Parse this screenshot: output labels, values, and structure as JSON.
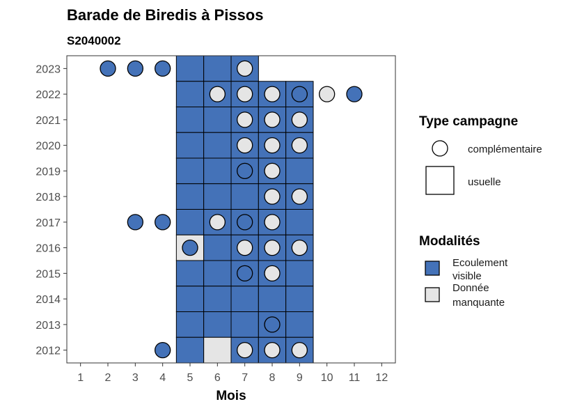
{
  "chart_data": {
    "type": "heatmap",
    "title": "Barade de Biredis à Pissos",
    "subtitle": "S2040002",
    "xlabel": "Mois",
    "ylabel": "",
    "x_ticks": [
      1,
      2,
      3,
      4,
      5,
      6,
      7,
      8,
      9,
      10,
      11,
      12
    ],
    "y_ticks": [
      2012,
      2013,
      2014,
      2015,
      2016,
      2017,
      2018,
      2019,
      2020,
      2021,
      2022,
      2023
    ],
    "colors": {
      "ecoulement_visible": "#4472b8",
      "donnee_manquante": "#e5e5e5"
    },
    "legends": {
      "shape": {
        "title": "Type campagne",
        "items": [
          {
            "label": "complémentaire",
            "shape": "circle"
          },
          {
            "label": "usuelle",
            "shape": "square"
          }
        ]
      },
      "fill": {
        "title": "Modalités",
        "items": [
          {
            "label_line1": "Ecoulement",
            "label_line2": "visible",
            "color": "#4472b8"
          },
          {
            "label_line1": "Donnée",
            "label_line2": "manquante",
            "color": "#e5e5e5"
          }
        ]
      }
    },
    "tiles": [
      {
        "year": 2023,
        "month": 5,
        "value": "Ecoulement visible"
      },
      {
        "year": 2023,
        "month": 6,
        "value": "Ecoulement visible"
      },
      {
        "year": 2023,
        "month": 7,
        "value": "Ecoulement visible"
      },
      {
        "year": 2022,
        "month": 5,
        "value": "Ecoulement visible"
      },
      {
        "year": 2022,
        "month": 6,
        "value": "Ecoulement visible"
      },
      {
        "year": 2022,
        "month": 7,
        "value": "Ecoulement visible"
      },
      {
        "year": 2022,
        "month": 8,
        "value": "Ecoulement visible"
      },
      {
        "year": 2022,
        "month": 9,
        "value": "Ecoulement visible"
      },
      {
        "year": 2021,
        "month": 5,
        "value": "Ecoulement visible"
      },
      {
        "year": 2021,
        "month": 6,
        "value": "Ecoulement visible"
      },
      {
        "year": 2021,
        "month": 7,
        "value": "Ecoulement visible"
      },
      {
        "year": 2021,
        "month": 8,
        "value": "Ecoulement visible"
      },
      {
        "year": 2021,
        "month": 9,
        "value": "Ecoulement visible"
      },
      {
        "year": 2020,
        "month": 5,
        "value": "Ecoulement visible"
      },
      {
        "year": 2020,
        "month": 6,
        "value": "Ecoulement visible"
      },
      {
        "year": 2020,
        "month": 7,
        "value": "Ecoulement visible"
      },
      {
        "year": 2020,
        "month": 8,
        "value": "Ecoulement visible"
      },
      {
        "year": 2020,
        "month": 9,
        "value": "Ecoulement visible"
      },
      {
        "year": 2019,
        "month": 5,
        "value": "Ecoulement visible"
      },
      {
        "year": 2019,
        "month": 6,
        "value": "Ecoulement visible"
      },
      {
        "year": 2019,
        "month": 7,
        "value": "Ecoulement visible"
      },
      {
        "year": 2019,
        "month": 8,
        "value": "Ecoulement visible"
      },
      {
        "year": 2019,
        "month": 9,
        "value": "Ecoulement visible"
      },
      {
        "year": 2018,
        "month": 5,
        "value": "Ecoulement visible"
      },
      {
        "year": 2018,
        "month": 6,
        "value": "Ecoulement visible"
      },
      {
        "year": 2018,
        "month": 7,
        "value": "Ecoulement visible"
      },
      {
        "year": 2018,
        "month": 8,
        "value": "Ecoulement visible"
      },
      {
        "year": 2018,
        "month": 9,
        "value": "Ecoulement visible"
      },
      {
        "year": 2017,
        "month": 5,
        "value": "Ecoulement visible"
      },
      {
        "year": 2017,
        "month": 6,
        "value": "Ecoulement visible"
      },
      {
        "year": 2017,
        "month": 7,
        "value": "Ecoulement visible"
      },
      {
        "year": 2017,
        "month": 8,
        "value": "Ecoulement visible"
      },
      {
        "year": 2017,
        "month": 9,
        "value": "Ecoulement visible"
      },
      {
        "year": 2016,
        "month": 5,
        "value": "Donnée manquante"
      },
      {
        "year": 2016,
        "month": 6,
        "value": "Ecoulement visible"
      },
      {
        "year": 2016,
        "month": 7,
        "value": "Ecoulement visible"
      },
      {
        "year": 2016,
        "month": 8,
        "value": "Ecoulement visible"
      },
      {
        "year": 2016,
        "month": 9,
        "value": "Ecoulement visible"
      },
      {
        "year": 2015,
        "month": 5,
        "value": "Ecoulement visible"
      },
      {
        "year": 2015,
        "month": 6,
        "value": "Ecoulement visible"
      },
      {
        "year": 2015,
        "month": 7,
        "value": "Ecoulement visible"
      },
      {
        "year": 2015,
        "month": 8,
        "value": "Ecoulement visible"
      },
      {
        "year": 2015,
        "month": 9,
        "value": "Ecoulement visible"
      },
      {
        "year": 2014,
        "month": 5,
        "value": "Ecoulement visible"
      },
      {
        "year": 2014,
        "month": 6,
        "value": "Ecoulement visible"
      },
      {
        "year": 2014,
        "month": 7,
        "value": "Ecoulement visible"
      },
      {
        "year": 2014,
        "month": 8,
        "value": "Ecoulement visible"
      },
      {
        "year": 2014,
        "month": 9,
        "value": "Ecoulement visible"
      },
      {
        "year": 2013,
        "month": 5,
        "value": "Ecoulement visible"
      },
      {
        "year": 2013,
        "month": 6,
        "value": "Ecoulement visible"
      },
      {
        "year": 2013,
        "month": 7,
        "value": "Ecoulement visible"
      },
      {
        "year": 2013,
        "month": 8,
        "value": "Ecoulement visible"
      },
      {
        "year": 2013,
        "month": 9,
        "value": "Ecoulement visible"
      },
      {
        "year": 2012,
        "month": 5,
        "value": "Ecoulement visible"
      },
      {
        "year": 2012,
        "month": 6,
        "value": "Donnée manquante"
      },
      {
        "year": 2012,
        "month": 7,
        "value": "Ecoulement visible"
      },
      {
        "year": 2012,
        "month": 8,
        "value": "Ecoulement visible"
      },
      {
        "year": 2012,
        "month": 9,
        "value": "Ecoulement visible"
      }
    ],
    "points": [
      {
        "year": 2023,
        "month": 2,
        "value": "Ecoulement visible"
      },
      {
        "year": 2023,
        "month": 3,
        "value": "Ecoulement visible"
      },
      {
        "year": 2023,
        "month": 4,
        "value": "Ecoulement visible"
      },
      {
        "year": 2023,
        "month": 7,
        "value": "Donnée manquante"
      },
      {
        "year": 2022,
        "month": 6,
        "value": "Donnée manquante"
      },
      {
        "year": 2022,
        "month": 7,
        "value": "Donnée manquante"
      },
      {
        "year": 2022,
        "month": 8,
        "value": "Donnée manquante"
      },
      {
        "year": 2022,
        "month": 9,
        "value": "Ecoulement visible"
      },
      {
        "year": 2022,
        "month": 10,
        "value": "Donnée manquante"
      },
      {
        "year": 2022,
        "month": 11,
        "value": "Ecoulement visible"
      },
      {
        "year": 2021,
        "month": 7,
        "value": "Donnée manquante"
      },
      {
        "year": 2021,
        "month": 8,
        "value": "Donnée manquante"
      },
      {
        "year": 2021,
        "month": 9,
        "value": "Donnée manquante"
      },
      {
        "year": 2020,
        "month": 7,
        "value": "Donnée manquante"
      },
      {
        "year": 2020,
        "month": 8,
        "value": "Donnée manquante"
      },
      {
        "year": 2020,
        "month": 9,
        "value": "Donnée manquante"
      },
      {
        "year": 2019,
        "month": 7,
        "value": "Ecoulement visible"
      },
      {
        "year": 2019,
        "month": 8,
        "value": "Donnée manquante"
      },
      {
        "year": 2018,
        "month": 8,
        "value": "Donnée manquante"
      },
      {
        "year": 2018,
        "month": 9,
        "value": "Donnée manquante"
      },
      {
        "year": 2017,
        "month": 3,
        "value": "Ecoulement visible"
      },
      {
        "year": 2017,
        "month": 4,
        "value": "Ecoulement visible"
      },
      {
        "year": 2017,
        "month": 6,
        "value": "Donnée manquante"
      },
      {
        "year": 2017,
        "month": 7,
        "value": "Ecoulement visible"
      },
      {
        "year": 2017,
        "month": 8,
        "value": "Donnée manquante"
      },
      {
        "year": 2016,
        "month": 5,
        "value": "Ecoulement visible"
      },
      {
        "year": 2016,
        "month": 7,
        "value": "Donnée manquante"
      },
      {
        "year": 2016,
        "month": 8,
        "value": "Donnée manquante"
      },
      {
        "year": 2016,
        "month": 9,
        "value": "Donnée manquante"
      },
      {
        "year": 2015,
        "month": 7,
        "value": "Ecoulement visible"
      },
      {
        "year": 2015,
        "month": 8,
        "value": "Donnée manquante"
      },
      {
        "year": 2013,
        "month": 8,
        "value": "Ecoulement visible"
      },
      {
        "year": 2012,
        "month": 4,
        "value": "Ecoulement visible"
      },
      {
        "year": 2012,
        "month": 7,
        "value": "Donnée manquante"
      },
      {
        "year": 2012,
        "month": 8,
        "value": "Donnée manquante"
      },
      {
        "year": 2012,
        "month": 9,
        "value": "Donnée manquante"
      }
    ]
  }
}
